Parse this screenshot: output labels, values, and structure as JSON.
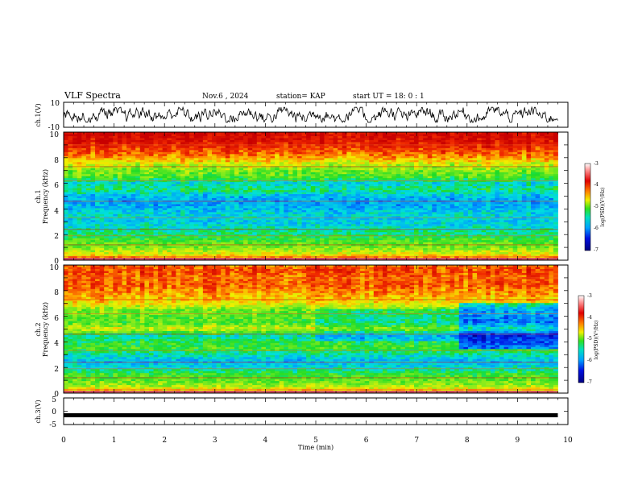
{
  "header": {
    "title": "VLF Spectra",
    "date": "Nov.6 , 2024",
    "station": "station= KAP",
    "start": "start UT = 18: 0 : 1"
  },
  "colors": {
    "spectrum_scale": [
      "#ffffff",
      "#d0107a",
      "#0a0aa8",
      "#0050ff",
      "#00c8ff",
      "#00e6b0",
      "#10d020",
      "#90f020",
      "#f0f000",
      "#ffa000",
      "#ff3000",
      "#e00000"
    ],
    "trace": "#000000"
  },
  "chart_data": [
    {
      "id": "ch1-waveform",
      "type": "line",
      "ylabel": "ch.1(V)",
      "yticks": [
        "10",
        "-10"
      ],
      "ylim": [
        -10,
        10
      ],
      "xlim": [
        0,
        10
      ],
      "description_values": "noisy waveform oscillating between roughly -6 and +6 V",
      "amplitude_range": [
        -6,
        6
      ]
    },
    {
      "id": "ch1-spectrogram",
      "type": "heatmap",
      "ylabel": "ch.1",
      "ylabel2": "Frequency (kHz)",
      "yticks": [
        "0",
        "2",
        "4",
        "6",
        "8",
        "10"
      ],
      "ylim": [
        0,
        10
      ],
      "xlim": [
        0,
        10
      ],
      "colorbar": {
        "label": "log(PSD)(V²/Hz)",
        "ticks": [
          "-3",
          "-4",
          "-5",
          "-6",
          "-7"
        ],
        "range": [
          -7,
          -3
        ]
      },
      "frequency_profile_kHz": [
        0,
        0.5,
        1,
        1.5,
        2,
        2.5,
        3,
        3.5,
        4,
        4.5,
        5,
        5.5,
        6,
        6.5,
        7,
        7.5,
        8,
        8.5,
        9,
        9.5,
        10
      ],
      "frequency_profile_logpsd": [
        -3.6,
        -4.4,
        -4.8,
        -5.0,
        -5.3,
        -5.5,
        -5.7,
        -5.6,
        -5.8,
        -5.9,
        -5.8,
        -5.3,
        -5.6,
        -5.0,
        -4.8,
        -4.5,
        -4.0,
        -3.7,
        -3.4,
        -3.2,
        -3.1
      ],
      "data_end_min": 9.8
    },
    {
      "id": "ch2-spectrogram",
      "type": "heatmap",
      "ylabel": "ch.2",
      "ylabel2": "Frequency (kHz)",
      "yticks": [
        "0",
        "2",
        "4",
        "6",
        "8",
        "10"
      ],
      "ylim": [
        0,
        10
      ],
      "xlim": [
        0,
        10
      ],
      "colorbar": {
        "label": "log(PSD)(V²/Hz)",
        "ticks": [
          "-3",
          "-4",
          "-5",
          "-6",
          "-7"
        ],
        "range": [
          -7,
          -3
        ]
      },
      "frequency_profile_kHz": [
        0,
        0.5,
        1,
        1.5,
        2,
        2.5,
        3,
        3.5,
        4,
        4.5,
        5,
        5.5,
        6,
        6.5,
        7,
        7.5,
        8,
        8.5,
        9,
        9.5,
        10
      ],
      "frequency_profile_logpsd": [
        -3.8,
        -4.6,
        -4.9,
        -5.1,
        -5.6,
        -5.8,
        -5.5,
        -5.0,
        -5.2,
        -5.5,
        -4.4,
        -5.0,
        -4.9,
        -4.8,
        -4.3,
        -4.1,
        -3.9,
        -3.7,
        -3.8,
        -3.6,
        -3.8
      ],
      "quiet_segment": {
        "from_min": 5.0,
        "to_min": 7.8,
        "from_kHz": 4.0,
        "to_kHz": 6.5,
        "shift": -0.4
      },
      "late_segment": {
        "from_min": 7.8,
        "to_min": 9.8,
        "from_kHz": 3.5,
        "to_kHz": 7.0,
        "shift": -1.1
      },
      "data_end_min": 9.8
    },
    {
      "id": "ch3-waveform",
      "type": "line",
      "ylabel": "ch.3(V)",
      "yticks": [
        "5",
        "0",
        "-5"
      ],
      "ylim": [
        -5,
        5
      ],
      "xlim": [
        0,
        10
      ],
      "constant_value": -1.5,
      "xlabel": "Time (min)",
      "xticks": [
        "0",
        "1",
        "2",
        "3",
        "4",
        "5",
        "6",
        "7",
        "8",
        "9",
        "10"
      ]
    }
  ]
}
